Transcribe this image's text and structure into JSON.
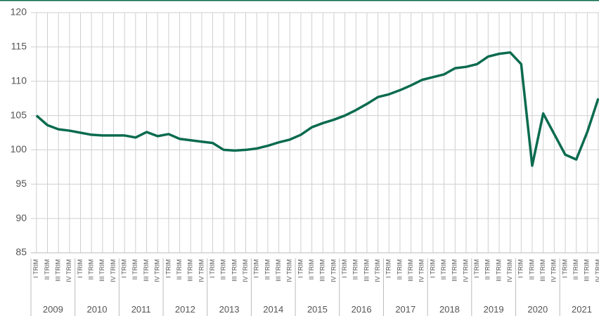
{
  "chart_data": {
    "type": "line",
    "categories": [
      "I TRIM",
      "II TRIM",
      "III TRIM",
      "IV TRIM",
      "I TRIM",
      "II TRIM",
      "III TRIM",
      "IV TRIM",
      "I TRIM",
      "II TRIM",
      "III TRIM",
      "IV TRIM",
      "I TRIM",
      "II TRIM",
      "III TRIM",
      "IV TRIM",
      "I TRIM",
      "II TRIM",
      "III TRIM",
      "IV TRIM",
      "I TRIM",
      "II TRIM",
      "III TRIM",
      "IV TRIM",
      "I TRIM",
      "II TRIM",
      "III TRIM",
      "IV TRIM",
      "I TRIM",
      "II TRIM",
      "III TRIM",
      "IV TRIM",
      "I TRIM",
      "II TRIM",
      "III TRIM",
      "IV TRIM",
      "I TRIM",
      "II TRIM",
      "III TRIM",
      "IV TRIM",
      "I TRIM",
      "II TRIM",
      "III TRIM",
      "IV TRIM",
      "I TRIM",
      "II TRIM",
      "III TRIM",
      "IV TRIM",
      "I TRIM",
      "II TRIM",
      "III TRIM",
      "IV TRIM"
    ],
    "years": [
      "2009",
      "2010",
      "2011",
      "2012",
      "2013",
      "2014",
      "2015",
      "2016",
      "2017",
      "2018",
      "2019",
      "2020",
      "2021"
    ],
    "series": [
      {
        "color": "#0a6b4e",
        "values": [
          105.0,
          103.6,
          103.0,
          102.8,
          102.5,
          102.2,
          102.1,
          102.1,
          102.1,
          101.8,
          102.6,
          102.0,
          102.3,
          101.6,
          101.4,
          101.2,
          101.0,
          100.0,
          99.9,
          100.0,
          100.2,
          100.6,
          101.1,
          101.5,
          102.2,
          103.3,
          103.9,
          104.4,
          105.0,
          105.8,
          106.7,
          107.7,
          108.1,
          108.7,
          109.4,
          110.2,
          110.6,
          111.0,
          111.9,
          112.1,
          112.5,
          113.6,
          114.0,
          114.2,
          112.5,
          97.7,
          105.3,
          102.3,
          99.3,
          98.6,
          102.6,
          107.5
        ]
      }
    ],
    "ylim": [
      85,
      120
    ],
    "yticks": [
      85,
      90,
      95,
      100,
      105,
      110,
      115,
      120
    ],
    "grid": true
  }
}
